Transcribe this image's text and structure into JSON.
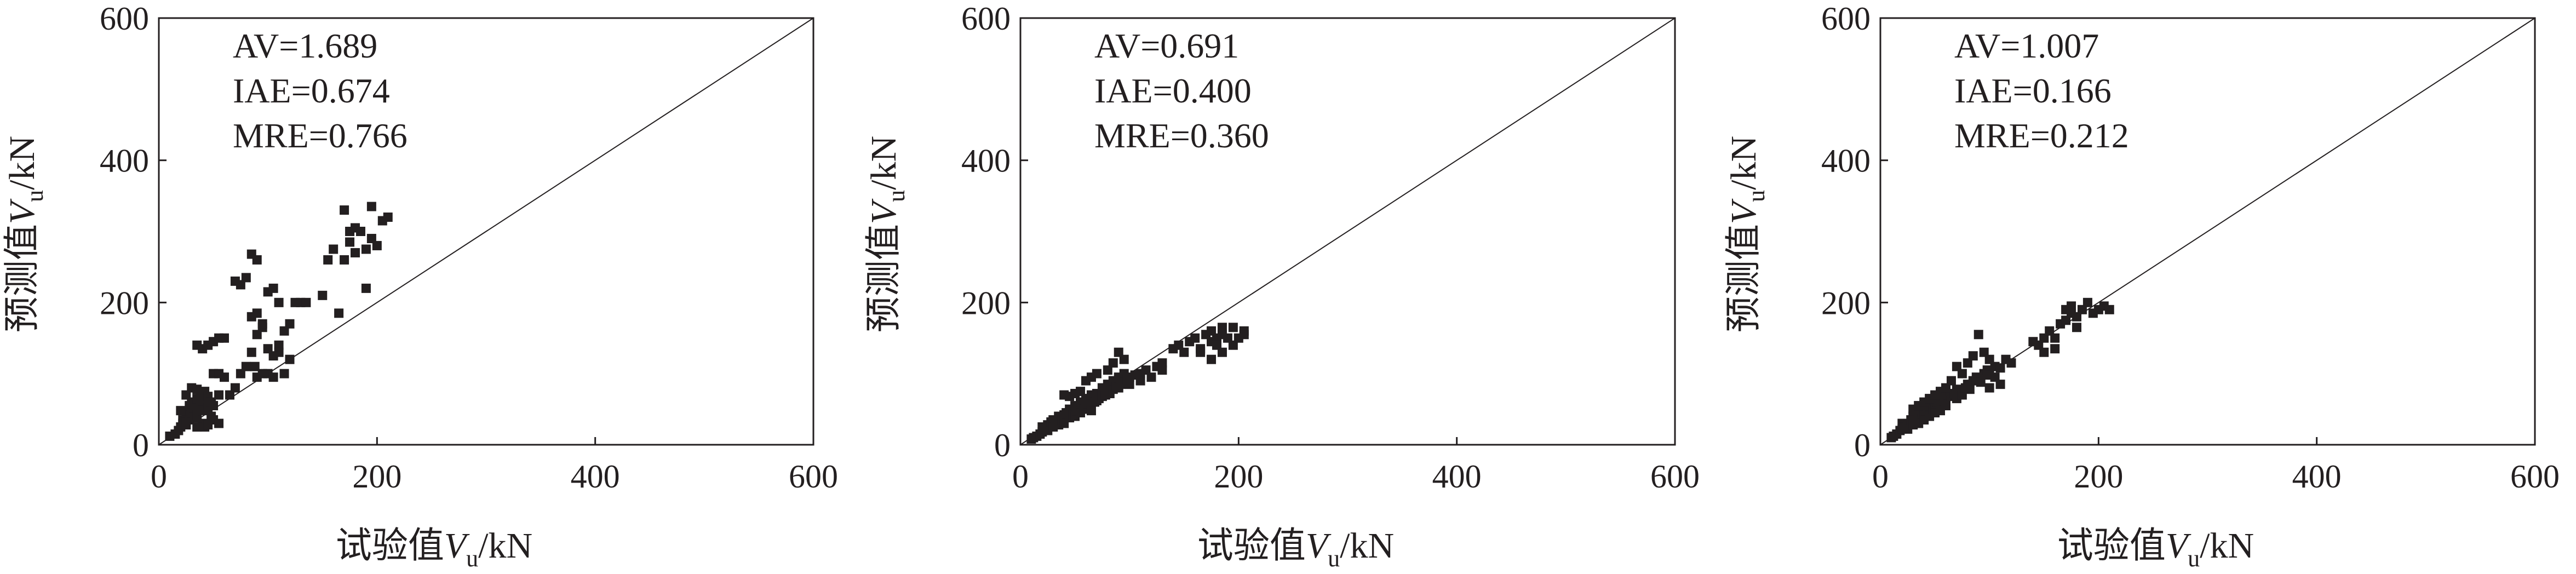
{
  "chart_data": [
    {
      "type": "scatter",
      "xlabel": {
        "prefix": "试验值",
        "var": "V",
        "sub": "u",
        "suffix": "/kN"
      },
      "ylabel": {
        "prefix": "预测值",
        "var": "V",
        "sub": "u",
        "suffix": "/kN"
      },
      "xlim": [
        0,
        600
      ],
      "ylim": [
        0,
        600
      ],
      "xticks": [
        "0",
        "200",
        "400",
        "600"
      ],
      "yticks": [
        "0",
        "200",
        "400",
        "600"
      ],
      "reference_line": "y=x",
      "annotations": [
        "AV=1.689",
        "IAE=0.674",
        "MRE=0.766"
      ],
      "points": [
        [
          10,
          12
        ],
        [
          15,
          15
        ],
        [
          18,
          20
        ],
        [
          20,
          25
        ],
        [
          22,
          30
        ],
        [
          22,
          35
        ],
        [
          25,
          28
        ],
        [
          25,
          40
        ],
        [
          25,
          45
        ],
        [
          28,
          55
        ],
        [
          28,
          35
        ],
        [
          30,
          60
        ],
        [
          30,
          45
        ],
        [
          32,
          38
        ],
        [
          32,
          52
        ],
        [
          35,
          65
        ],
        [
          35,
          42
        ],
        [
          38,
          58
        ],
        [
          38,
          70
        ],
        [
          40,
          48
        ],
        [
          40,
          62
        ],
        [
          42,
          25
        ],
        [
          42,
          75
        ],
        [
          45,
          52
        ],
        [
          45,
          68
        ],
        [
          48,
          40
        ],
        [
          48,
          60
        ],
        [
          50,
          35
        ],
        [
          50,
          55
        ],
        [
          55,
          70
        ],
        [
          55,
          30
        ],
        [
          30,
          80
        ],
        [
          35,
          78
        ],
        [
          25,
          70
        ],
        [
          20,
          48
        ],
        [
          40,
          30
        ],
        [
          45,
          28
        ],
        [
          35,
          25
        ],
        [
          50,
          100
        ],
        [
          55,
          100
        ],
        [
          60,
          95
        ],
        [
          65,
          70
        ],
        [
          70,
          80
        ],
        [
          75,
          100
        ],
        [
          80,
          110
        ],
        [
          85,
          130
        ],
        [
          88,
          110
        ],
        [
          90,
          95
        ],
        [
          95,
          100
        ],
        [
          100,
          100
        ],
        [
          105,
          95
        ],
        [
          110,
          140
        ],
        [
          115,
          160
        ],
        [
          120,
          170
        ],
        [
          125,
          200
        ],
        [
          130,
          200
        ],
        [
          135,
          200
        ],
        [
          120,
          120
        ],
        [
          115,
          100
        ],
        [
          110,
          130
        ],
        [
          105,
          125
        ],
        [
          100,
          135
        ],
        [
          95,
          165
        ],
        [
          90,
          185
        ],
        [
          85,
          180
        ],
        [
          40,
          135
        ],
        [
          45,
          140
        ],
        [
          50,
          145
        ],
        [
          55,
          150
        ],
        [
          60,
          150
        ],
        [
          35,
          140
        ],
        [
          70,
          230
        ],
        [
          75,
          225
        ],
        [
          80,
          235
        ],
        [
          85,
          268
        ],
        [
          90,
          260
        ],
        [
          100,
          215
        ],
        [
          105,
          220
        ],
        [
          110,
          200
        ],
        [
          95,
          170
        ],
        [
          90,
          155
        ],
        [
          150,
          210
        ],
        [
          155,
          260
        ],
        [
          160,
          275
        ],
        [
          165,
          185
        ],
        [
          170,
          330
        ],
        [
          175,
          285
        ],
        [
          180,
          270
        ],
        [
          185,
          300
        ],
        [
          190,
          275
        ],
        [
          190,
          220
        ],
        [
          195,
          290
        ],
        [
          195,
          335
        ],
        [
          200,
          280
        ],
        [
          205,
          315
        ],
        [
          210,
          320
        ],
        [
          175,
          300
        ],
        [
          180,
          305
        ],
        [
          170,
          260
        ]
      ]
    },
    {
      "type": "scatter",
      "xlabel": {
        "prefix": "试验值",
        "var": "V",
        "sub": "u",
        "suffix": "/kN"
      },
      "ylabel": {
        "prefix": "预测值",
        "var": "V",
        "sub": "u",
        "suffix": "/kN"
      },
      "xlim": [
        0,
        600
      ],
      "ylim": [
        0,
        600
      ],
      "xticks": [
        "0",
        "200",
        "400",
        "600"
      ],
      "yticks": [
        "0",
        "200",
        "400",
        "600"
      ],
      "reference_line": "y=x",
      "annotations": [
        "AV=0.691",
        "IAE=0.400",
        "MRE=0.360"
      ],
      "points": [
        [
          10,
          8
        ],
        [
          12,
          10
        ],
        [
          15,
          12
        ],
        [
          18,
          15
        ],
        [
          20,
          18
        ],
        [
          20,
          25
        ],
        [
          22,
          22
        ],
        [
          25,
          28
        ],
        [
          25,
          20
        ],
        [
          28,
          32
        ],
        [
          30,
          35
        ],
        [
          30,
          25
        ],
        [
          32,
          30
        ],
        [
          35,
          40
        ],
        [
          35,
          28
        ],
        [
          38,
          35
        ],
        [
          40,
          42
        ],
        [
          40,
          30
        ],
        [
          42,
          45
        ],
        [
          45,
          38
        ],
        [
          45,
          50
        ],
        [
          48,
          42
        ],
        [
          50,
          55
        ],
        [
          50,
          40
        ],
        [
          52,
          48
        ],
        [
          55,
          60
        ],
        [
          55,
          45
        ],
        [
          58,
          50
        ],
        [
          60,
          65
        ],
        [
          60,
          55
        ],
        [
          62,
          58
        ],
        [
          65,
          70
        ],
        [
          65,
          48
        ],
        [
          68,
          60
        ],
        [
          70,
          72
        ],
        [
          70,
          62
        ],
        [
          72,
          65
        ],
        [
          75,
          80
        ],
        [
          75,
          68
        ],
        [
          78,
          70
        ],
        [
          80,
          85
        ],
        [
          80,
          75
        ],
        [
          82,
          72
        ],
        [
          85,
          78
        ],
        [
          85,
          90
        ],
        [
          88,
          82
        ],
        [
          90,
          95
        ],
        [
          90,
          80
        ],
        [
          92,
          85
        ],
        [
          95,
          100
        ],
        [
          95,
          88
        ],
        [
          98,
          92
        ],
        [
          100,
          85
        ],
        [
          100,
          95
        ],
        [
          105,
          98
        ],
        [
          110,
          100
        ],
        [
          110,
          90
        ],
        [
          115,
          105
        ],
        [
          120,
          95
        ],
        [
          125,
          110
        ],
        [
          130,
          105
        ],
        [
          130,
          115
        ],
        [
          40,
          70
        ],
        [
          45,
          68
        ],
        [
          50,
          72
        ],
        [
          55,
          75
        ],
        [
          60,
          90
        ],
        [
          65,
          95
        ],
        [
          70,
          100
        ],
        [
          80,
          105
        ],
        [
          85,
          115
        ],
        [
          90,
          130
        ],
        [
          95,
          120
        ],
        [
          140,
          135
        ],
        [
          145,
          140
        ],
        [
          150,
          130
        ],
        [
          155,
          145
        ],
        [
          160,
          150
        ],
        [
          165,
          135
        ],
        [
          170,
          155
        ],
        [
          175,
          160
        ],
        [
          175,
          145
        ],
        [
          180,
          150
        ],
        [
          180,
          140
        ],
        [
          185,
          165
        ],
        [
          185,
          155
        ],
        [
          190,
          150
        ],
        [
          195,
          140
        ],
        [
          195,
          165
        ],
        [
          200,
          150
        ],
        [
          205,
          160
        ],
        [
          205,
          155
        ],
        [
          175,
          120
        ],
        [
          185,
          130
        ],
        [
          165,
          130
        ]
      ]
    },
    {
      "type": "scatter",
      "xlabel": {
        "prefix": "试验值",
        "var": "V",
        "sub": "u",
        "suffix": "/kN"
      },
      "ylabel": {
        "prefix": "预测值",
        "var": "V",
        "sub": "u",
        "suffix": "/kN"
      },
      "xlim": [
        0,
        600
      ],
      "ylim": [
        0,
        600
      ],
      "xticks": [
        "0",
        "200",
        "400",
        "600"
      ],
      "yticks": [
        "0",
        "200",
        "400",
        "600"
      ],
      "reference_line": "y=x",
      "annotations": [
        "AV=1.007",
        "IAE=0.166",
        "MRE=0.212"
      ],
      "points": [
        [
          10,
          10
        ],
        [
          12,
          12
        ],
        [
          15,
          15
        ],
        [
          18,
          20
        ],
        [
          20,
          22
        ],
        [
          20,
          30
        ],
        [
          22,
          25
        ],
        [
          25,
          30
        ],
        [
          25,
          22
        ],
        [
          28,
          35
        ],
        [
          30,
          28
        ],
        [
          30,
          40
        ],
        [
          32,
          35
        ],
        [
          35,
          38
        ],
        [
          35,
          30
        ],
        [
          38,
          45
        ],
        [
          40,
          42
        ],
        [
          40,
          35
        ],
        [
          42,
          48
        ],
        [
          45,
          40
        ],
        [
          45,
          55
        ],
        [
          48,
          50
        ],
        [
          50,
          52
        ],
        [
          50,
          45
        ],
        [
          52,
          60
        ],
        [
          55,
          58
        ],
        [
          55,
          48
        ],
        [
          58,
          62
        ],
        [
          60,
          65
        ],
        [
          60,
          55
        ],
        [
          62,
          70
        ],
        [
          65,
          68
        ],
        [
          68,
          72
        ],
        [
          70,
          65
        ],
        [
          70,
          78
        ],
        [
          72,
          75
        ],
        [
          75,
          70
        ],
        [
          78,
          80
        ],
        [
          80,
          85
        ],
        [
          82,
          78
        ],
        [
          85,
          90
        ],
        [
          88,
          95
        ],
        [
          90,
          92
        ],
        [
          92,
          88
        ],
        [
          95,
          100
        ],
        [
          98,
          105
        ],
        [
          100,
          98
        ],
        [
          105,
          110
        ],
        [
          110,
          108
        ],
        [
          115,
          120
        ],
        [
          120,
          115
        ],
        [
          30,
          50
        ],
        [
          35,
          55
        ],
        [
          40,
          60
        ],
        [
          45,
          65
        ],
        [
          50,
          70
        ],
        [
          55,
          75
        ],
        [
          60,
          80
        ],
        [
          65,
          90
        ],
        [
          70,
          110
        ],
        [
          75,
          100
        ],
        [
          80,
          115
        ],
        [
          85,
          125
        ],
        [
          90,
          155
        ],
        [
          95,
          130
        ],
        [
          100,
          120
        ],
        [
          105,
          95
        ],
        [
          110,
          85
        ],
        [
          100,
          80
        ],
        [
          140,
          145
        ],
        [
          145,
          140
        ],
        [
          150,
          130
        ],
        [
          150,
          150
        ],
        [
          155,
          160
        ],
        [
          160,
          150
        ],
        [
          165,
          170
        ],
        [
          170,
          175
        ],
        [
          170,
          190
        ],
        [
          175,
          185
        ],
        [
          175,
          195
        ],
        [
          180,
          180
        ],
        [
          180,
          165
        ],
        [
          185,
          190
        ],
        [
          190,
          200
        ],
        [
          195,
          185
        ],
        [
          200,
          190
        ],
        [
          205,
          195
        ],
        [
          210,
          190
        ],
        [
          160,
          135
        ]
      ]
    }
  ]
}
